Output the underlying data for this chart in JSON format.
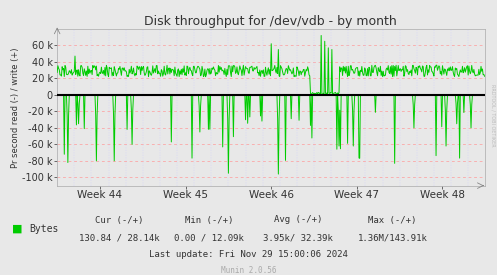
{
  "title": "Disk throughput for /dev/vdb - by month",
  "ylabel": "Pr second read (-) / write (+)",
  "x_tick_labels": [
    "Week 44",
    "Week 45",
    "Week 46",
    "Week 47",
    "Week 48"
  ],
  "ylim": [
    -110000,
    80000
  ],
  "yticks": [
    -100000,
    -80000,
    -60000,
    -40000,
    -20000,
    0,
    20000,
    40000,
    60000
  ],
  "bg_color": "#e8e8e8",
  "plot_bg_color": "#e8e8e8",
  "grid_color": "#ff9999",
  "grid_vcolor": "#ccccff",
  "line_color": "#00cc00",
  "zero_line_color": "#000000",
  "legend_label": "Bytes",
  "legend_color": "#00cc00",
  "cur_label": "Cur (-/+)",
  "min_label": "Min (-/+)",
  "avg_label": "Avg (-/+)",
  "max_label": "Max (-/+)",
  "cur_val": "130.84 / 28.14k",
  "min_val": "0.00 / 12.09k",
  "avg_val": "3.95k/ 32.39k",
  "max_val": "1.36M/143.91k",
  "last_update": "Last update: Fri Nov 29 15:00:06 2024",
  "munin_version": "Munin 2.0.56",
  "rrdtool_label": "RRDTOOL / TOBI OETIKER",
  "n_points": 600,
  "seed": 42
}
